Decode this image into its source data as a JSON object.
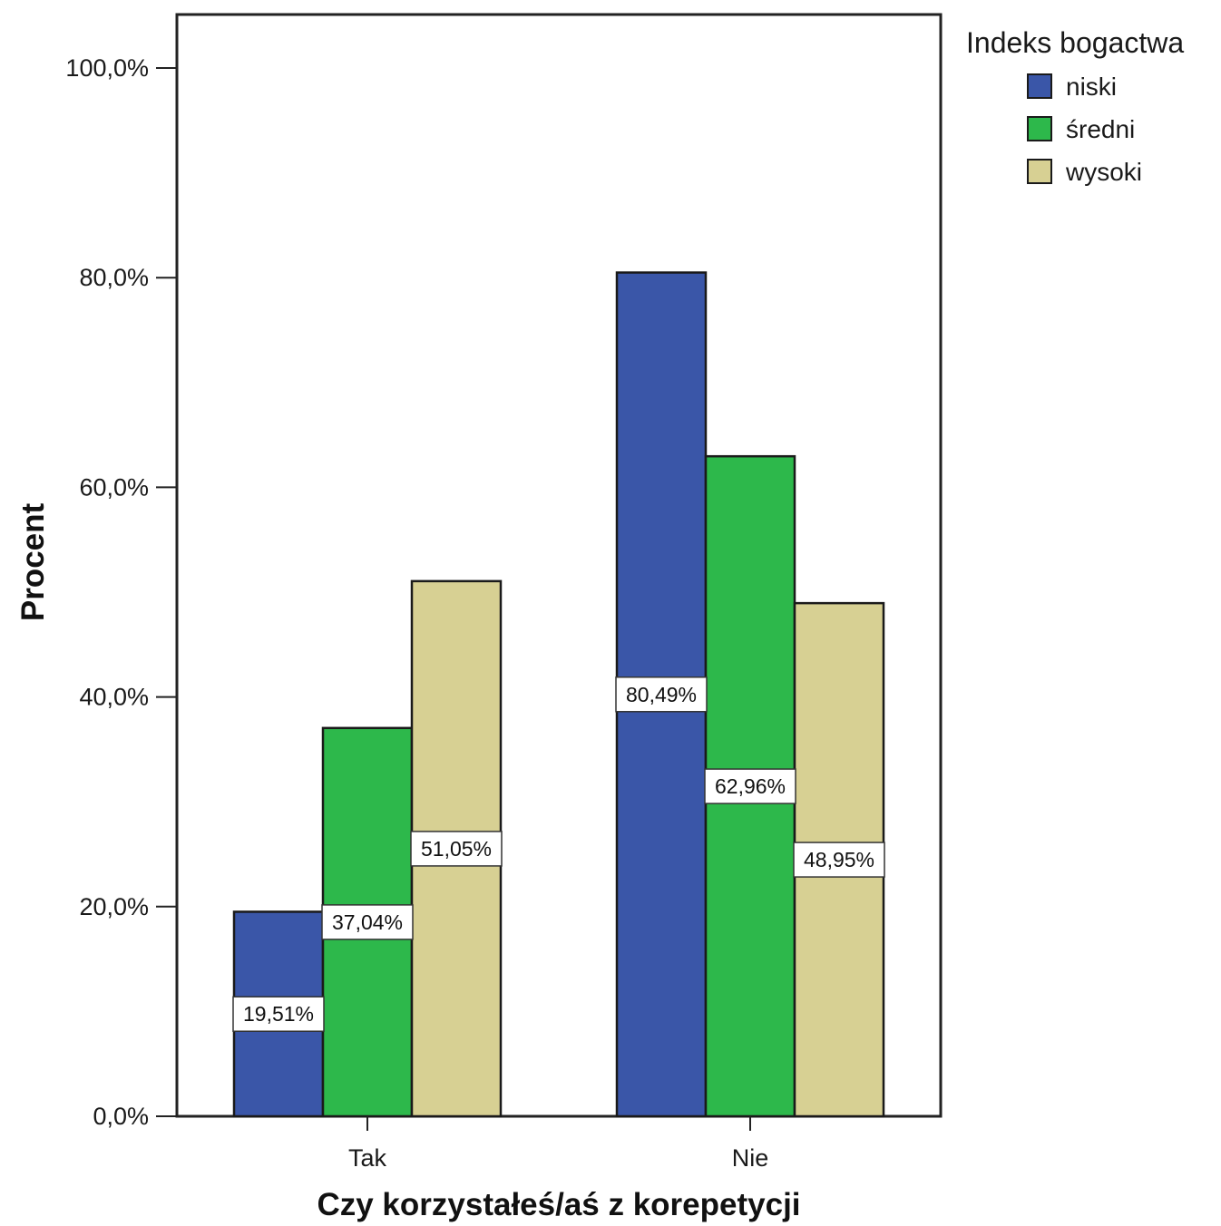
{
  "chart_data": {
    "type": "bar",
    "categories": [
      "Tak",
      "Nie"
    ],
    "series": [
      {
        "name": "niski",
        "color": "#3a56a8",
        "values": [
          19.51,
          80.49
        ],
        "labels": [
          "19,51%",
          "80,49%"
        ]
      },
      {
        "name": "średni",
        "color": "#2db84b",
        "values": [
          37.04,
          62.96
        ],
        "labels": [
          "37,04%",
          "62,96%"
        ]
      },
      {
        "name": "wysoki",
        "color": "#d7d093",
        "values": [
          51.05,
          48.95
        ],
        "labels": [
          "51,05%",
          "48,95%"
        ]
      }
    ],
    "xlabel": "Czy korzystałeś/aś z korepetycji",
    "ylabel": "Procent",
    "ylim": [
      0,
      105
    ],
    "yticks": [
      0,
      20,
      40,
      60,
      80,
      100
    ],
    "ytick_labels": [
      "0,0%",
      "20,0%",
      "40,0%",
      "60,0%",
      "80,0%",
      "100,0%"
    ],
    "legend": {
      "title": "Indeks bogactwa",
      "placement": "top-right, outside plot"
    },
    "grid": false
  }
}
